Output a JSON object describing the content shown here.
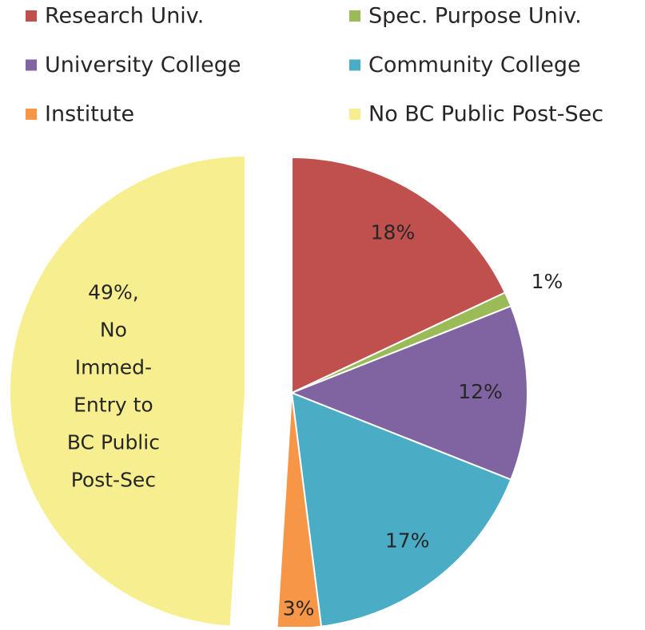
{
  "chart_data": {
    "type": "pie",
    "categories": [
      "Research Univ.",
      "Spec. Purpose Univ.",
      "University College",
      "Community College",
      "Institute",
      "No BC Public Post-Sec"
    ],
    "values": [
      18,
      1,
      12,
      17,
      3,
      49
    ],
    "value_labels": [
      "18%",
      "1%",
      "12%",
      "17%",
      "3%",
      [
        "49%,",
        "No",
        "Immed-",
        "Entry to",
        "BC Public",
        "Post-Sec"
      ]
    ],
    "colors": [
      "#c0504d",
      "#9bbb59",
      "#8064a2",
      "#4bacc6",
      "#f79646",
      "#f7ef8f"
    ],
    "legend": "top"
  }
}
